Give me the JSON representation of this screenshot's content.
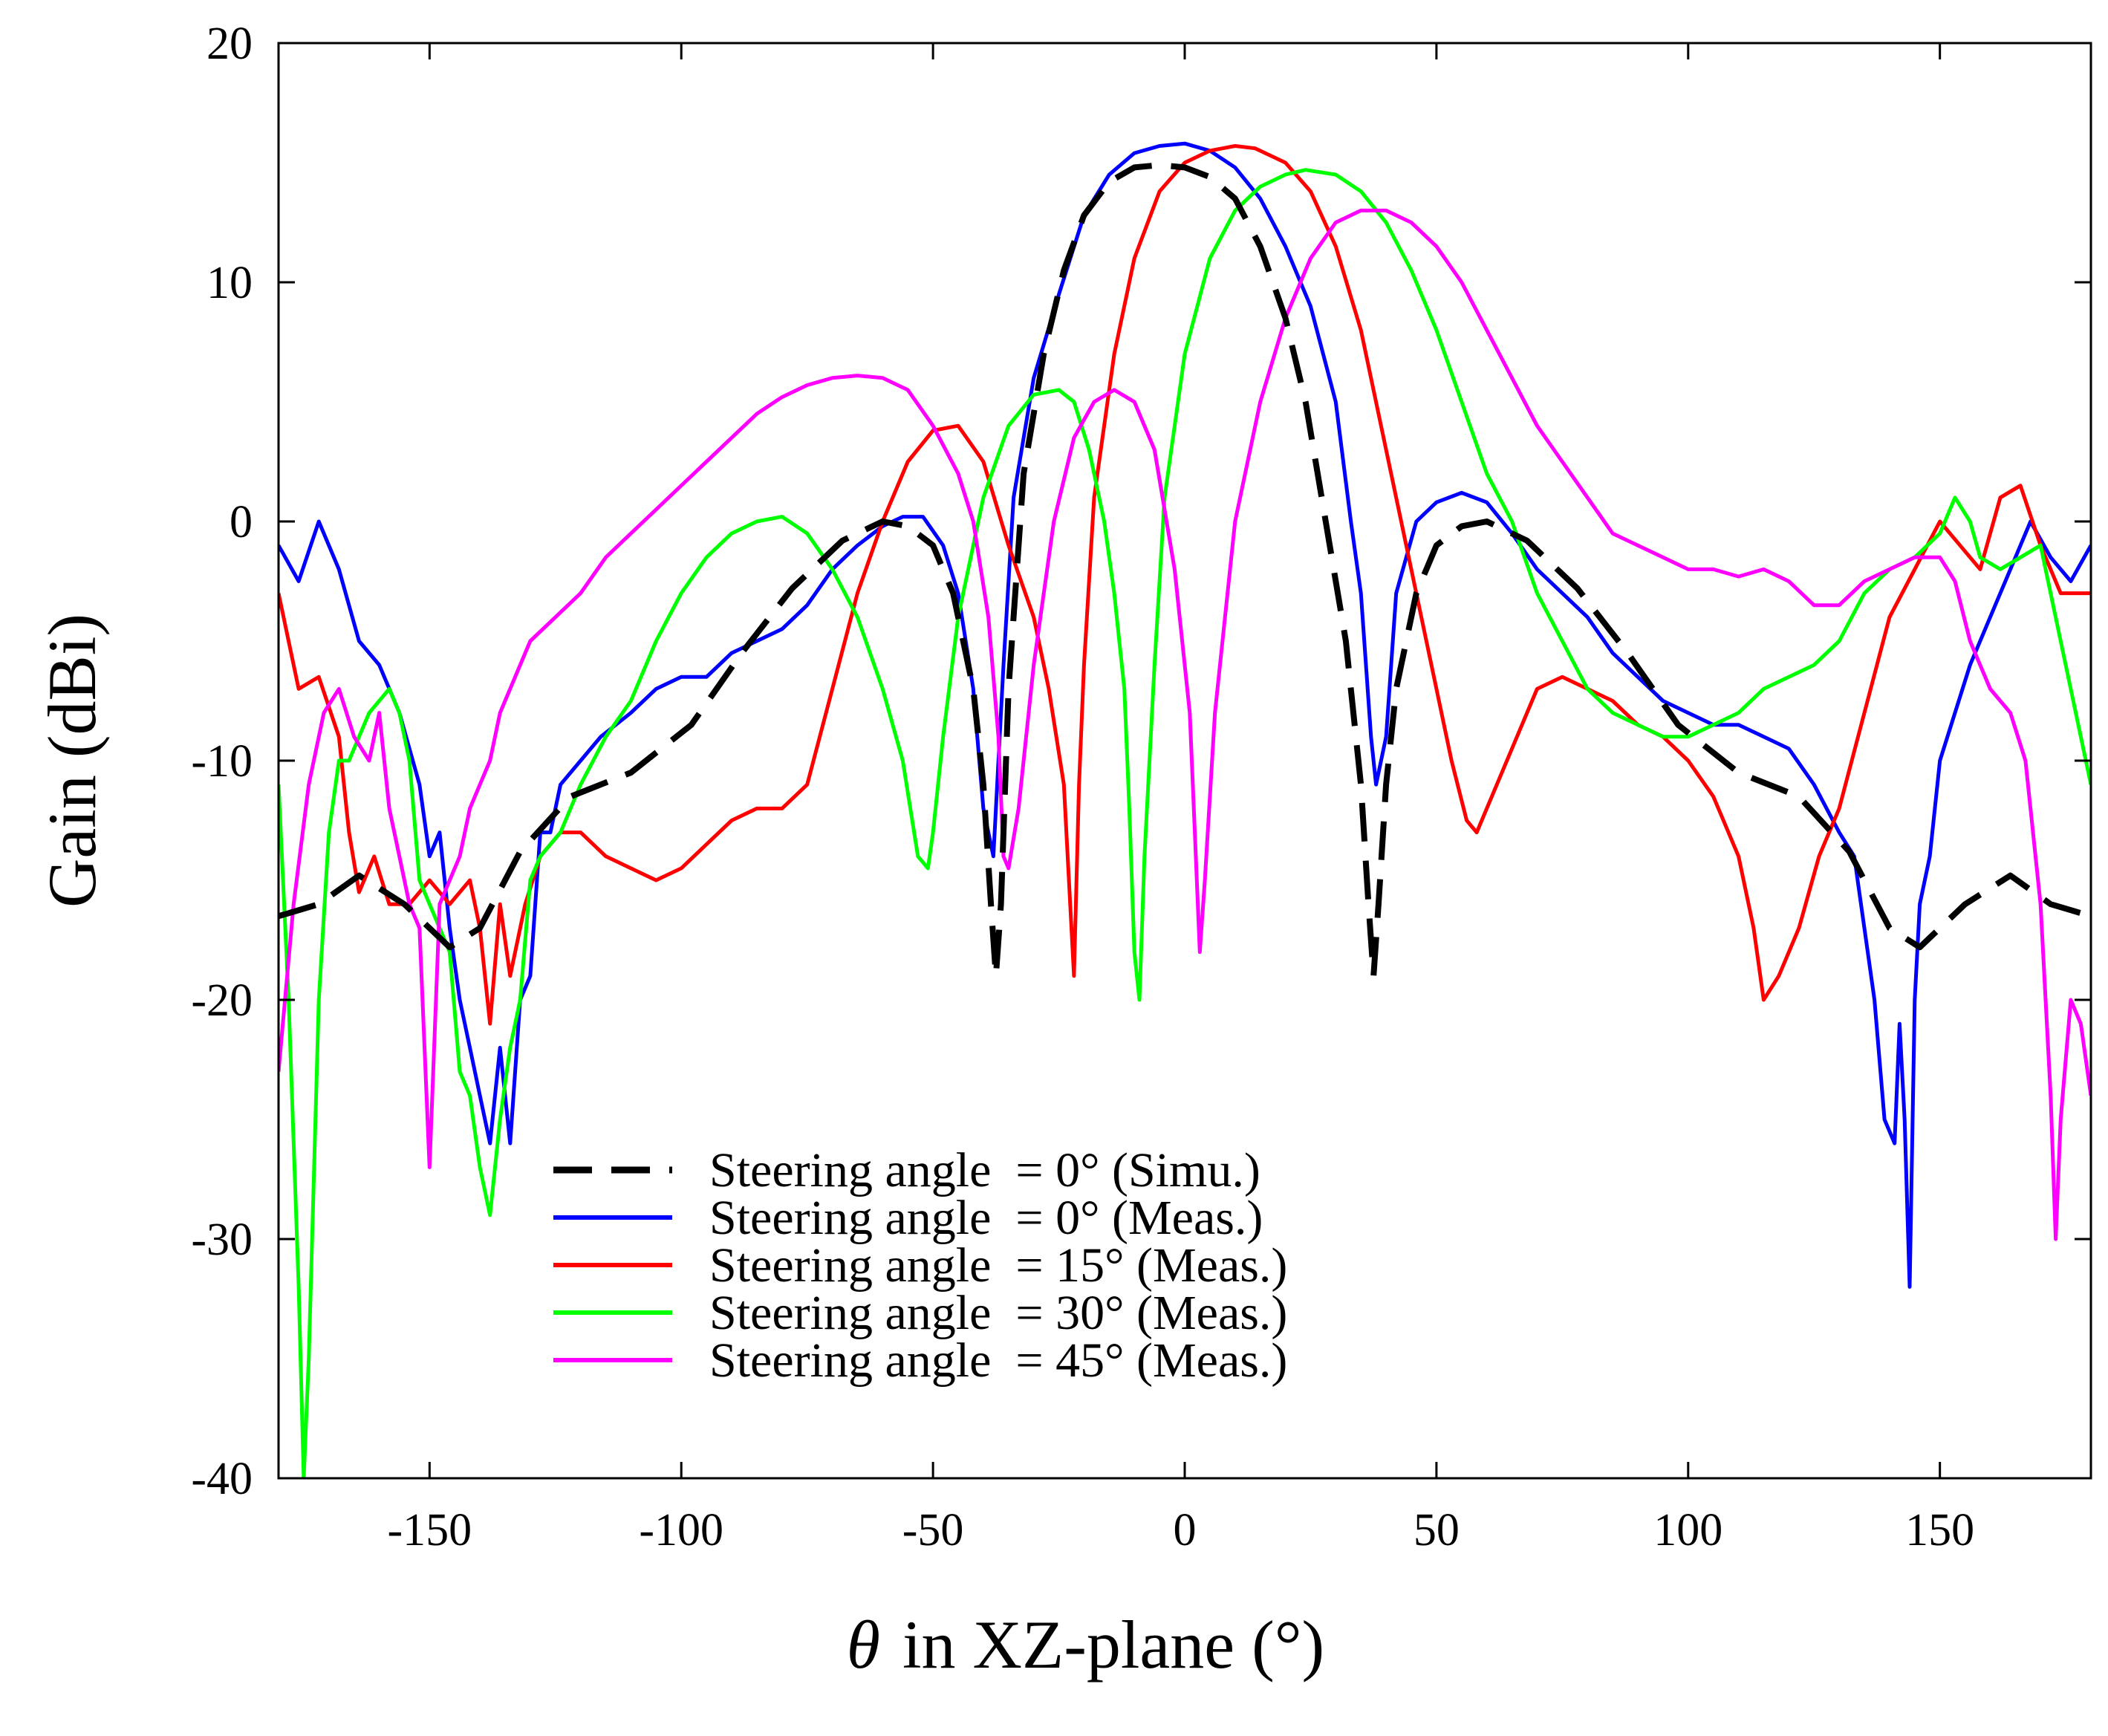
{
  "chart_data": {
    "type": "line",
    "title": "",
    "xlabel": "in XZ-plane (°)",
    "xlabel_symbol": "θ",
    "ylabel": "Gain (dBi)",
    "xlim": [
      -180,
      180
    ],
    "ylim": [
      -40,
      20
    ],
    "xticks": [
      -150,
      -100,
      -50,
      0,
      50,
      100,
      150
    ],
    "xtick_labels": [
      "-150",
      "-100",
      "-50",
      "0",
      "50",
      "100",
      "150"
    ],
    "yticks": [
      -40,
      -30,
      -20,
      -10,
      0,
      10,
      20
    ],
    "ytick_labels": [
      "-40",
      "-30",
      "-20",
      "-10",
      "0",
      "10",
      "20"
    ],
    "grid": false,
    "legend_position": "bottom-center",
    "series": [
      {
        "name": "Steering angle  = 0° (Simu.)",
        "color": "#000000",
        "dashed": true,
        "x": [
          -180,
          -172,
          -164,
          -155,
          -146,
          -140,
          -132,
          -122,
          -110,
          -98,
          -88,
          -78,
          -68,
          -60,
          -55,
          -50,
          -46,
          -42,
          -40,
          -38.5,
          -37.5,
          -36.5,
          -35,
          -32,
          -28,
          -24,
          -20,
          -15,
          -10,
          -5,
          0,
          5,
          10,
          15,
          20,
          24,
          28,
          32,
          35,
          36.5,
          37.5,
          38.5,
          40,
          42,
          46,
          50,
          55,
          60,
          68,
          78,
          88,
          98,
          110,
          122,
          132,
          140,
          146,
          155,
          164,
          172,
          180
        ],
        "values": [
          -16.5,
          -16,
          -14.8,
          -16,
          -17.8,
          -17,
          -13.8,
          -11.5,
          -10.5,
          -8.5,
          -5.5,
          -2.8,
          -0.8,
          0,
          -0.2,
          -1,
          -3,
          -7,
          -11,
          -16,
          -19,
          -16,
          -7,
          2,
          7,
          10.5,
          12.8,
          14.2,
          14.8,
          14.9,
          14.8,
          14.4,
          13.5,
          11.5,
          8.5,
          5,
          0,
          -5,
          -11,
          -16,
          -19,
          -16,
          -11,
          -7,
          -3,
          -1,
          -0.2,
          0,
          -0.8,
          -2.8,
          -5.5,
          -8.5,
          -10.5,
          -11.5,
          -13.8,
          -17,
          -17.8,
          -16,
          -14.8,
          -16,
          -16.5
        ]
      },
      {
        "name": "Steering angle  = 0° (Meas.)",
        "color": "#0000ff",
        "dashed": false,
        "x": [
          -180,
          -176,
          -172,
          -168,
          -164,
          -160,
          -156,
          -152,
          -150,
          -148,
          -146,
          -144,
          -142,
          -140,
          -138,
          -136,
          -134,
          -132,
          -130,
          -128,
          -126,
          -124,
          -120,
          -116,
          -110,
          -105,
          -100,
          -95,
          -90,
          -85,
          -80,
          -75,
          -70,
          -65,
          -60,
          -56,
          -52,
          -48,
          -45,
          -42,
          -40,
          -38,
          -36,
          -34,
          -30,
          -25,
          -20,
          -15,
          -10,
          -5,
          0,
          5,
          10,
          15,
          20,
          25,
          30,
          33,
          35,
          36,
          37,
          38,
          40,
          42,
          46,
          50,
          55,
          60,
          65,
          70,
          75,
          80,
          85,
          90,
          95,
          100,
          105,
          110,
          115,
          120,
          125,
          130,
          133,
          135,
          137,
          139,
          141,
          142,
          143,
          144,
          145,
          146,
          148,
          150,
          153,
          156,
          160,
          164,
          168,
          172,
          176,
          180
        ],
        "values": [
          -1,
          -2.5,
          0,
          -2,
          -5,
          -6,
          -8,
          -11,
          -14,
          -13,
          -17,
          -20,
          -22,
          -24,
          -26,
          -22,
          -26,
          -20,
          -19,
          -13,
          -13,
          -11,
          -10,
          -9,
          -8,
          -7,
          -6.5,
          -6.5,
          -5.5,
          -5,
          -4.5,
          -3.5,
          -2,
          -1,
          -0.2,
          0.2,
          0.2,
          -1,
          -3,
          -7,
          -12,
          -14,
          -6,
          1,
          6,
          9.5,
          12.8,
          14.5,
          15.4,
          15.7,
          15.8,
          15.5,
          14.8,
          13.5,
          11.5,
          9,
          5,
          0,
          -3,
          -6,
          -9,
          -11,
          -9,
          -3,
          0,
          0.8,
          1.2,
          0.8,
          -0.5,
          -2,
          -3,
          -4,
          -5.5,
          -6.5,
          -7.5,
          -8,
          -8.5,
          -8.5,
          -9,
          -9.5,
          -11,
          -13,
          -14,
          -17,
          -20,
          -25,
          -26,
          -21,
          -25,
          -32,
          -20,
          -16,
          -14,
          -10,
          -8,
          -6,
          -4,
          -2,
          0,
          -1.5,
          -2.5,
          -1
        ]
      },
      {
        "name": "Steering angle  = 15° (Meas.)",
        "color": "#ff0000",
        "dashed": false,
        "x": [
          -180,
          -176,
          -172,
          -168,
          -166,
          -164,
          -161,
          -158,
          -154,
          -150,
          -146,
          -142,
          -140,
          -138,
          -136,
          -134,
          -131,
          -128,
          -124,
          -120,
          -115,
          -110,
          -105,
          -100,
          -95,
          -90,
          -85,
          -80,
          -75,
          -70,
          -65,
          -60,
          -55,
          -50,
          -45,
          -40,
          -35,
          -30,
          -27,
          -24,
          -23,
          -22,
          -21,
          -20,
          -18,
          -14,
          -10,
          -5,
          0,
          5,
          10,
          14,
          20,
          25,
          30,
          35,
          40,
          45,
          50,
          53,
          56,
          58,
          62,
          66,
          70,
          75,
          80,
          85,
          90,
          95,
          100,
          105,
          110,
          113,
          115,
          118,
          122,
          126,
          130,
          135,
          140,
          145,
          150,
          154,
          158,
          162,
          166,
          170,
          174,
          178,
          180
        ],
        "values": [
          -3,
          -7,
          -6.5,
          -9,
          -13,
          -15.5,
          -14,
          -16,
          -16,
          -15,
          -16,
          -15,
          -17,
          -21,
          -16,
          -19,
          -16,
          -14,
          -13,
          -13,
          -14,
          -14.5,
          -15,
          -14.5,
          -13.5,
          -12.5,
          -12,
          -12,
          -11,
          -7,
          -3,
          0,
          2.5,
          3.8,
          4,
          2.5,
          -1,
          -4,
          -7,
          -11,
          -15,
          -19,
          -11,
          -6,
          1,
          7,
          11,
          13.8,
          15,
          15.5,
          15.7,
          15.6,
          15,
          13.8,
          11.5,
          8,
          3,
          -2,
          -7,
          -10,
          -12.5,
          -13,
          -11,
          -9,
          -7,
          -6.5,
          -7,
          -7.5,
          -8.5,
          -9,
          -10,
          -11.5,
          -14,
          -17,
          -20,
          -19,
          -17,
          -14,
          -12,
          -8,
          -4,
          -2,
          0,
          -1,
          -2,
          1,
          1.5,
          -1,
          -3,
          -3,
          -3
        ]
      },
      {
        "name": "Steering angle  = 30° (Meas.)",
        "color": "#00ff00",
        "dashed": false,
        "x": [
          -180,
          -178,
          -176,
          -175,
          -174,
          -172,
          -170,
          -168,
          -166,
          -164,
          -162,
          -160,
          -158,
          -156,
          -154,
          -152,
          -150,
          -148,
          -146,
          -144,
          -142,
          -140,
          -138,
          -136,
          -134,
          -132,
          -130,
          -128,
          -124,
          -120,
          -115,
          -110,
          -105,
          -100,
          -95,
          -90,
          -85,
          -80,
          -75,
          -70,
          -65,
          -60,
          -56,
          -53,
          -51,
          -50,
          -48,
          -45,
          -40,
          -35,
          -30,
          -25,
          -22,
          -19,
          -16,
          -14,
          -12,
          -11,
          -10,
          -9,
          -8,
          -6,
          -4,
          0,
          5,
          10,
          15,
          20,
          24,
          30,
          35,
          40,
          45,
          50,
          55,
          60,
          65,
          70,
          75,
          80,
          85,
          90,
          95,
          100,
          105,
          110,
          115,
          120,
          125,
          130,
          135,
          140,
          145,
          150,
          153,
          156,
          158,
          162,
          166,
          170,
          174,
          178,
          180
        ],
        "values": [
          -11,
          -20,
          -32,
          -40,
          -35,
          -20,
          -13,
          -10,
          -10,
          -9,
          -8,
          -7.5,
          -7,
          -8,
          -10,
          -15,
          -16,
          -17,
          -18,
          -23,
          -24,
          -27,
          -29,
          -25,
          -22,
          -20,
          -15,
          -14,
          -13,
          -11,
          -9,
          -7.5,
          -5,
          -3,
          -1.5,
          -0.5,
          0,
          0.2,
          -0.5,
          -2,
          -4,
          -7,
          -10,
          -14,
          -14.5,
          -13,
          -9,
          -4,
          1,
          4,
          5.3,
          5.5,
          5,
          3,
          0,
          -3,
          -7,
          -12,
          -18,
          -20,
          -14,
          -6,
          1,
          7,
          11,
          13,
          14,
          14.5,
          14.7,
          14.5,
          13.8,
          12.5,
          10.5,
          8,
          5,
          2,
          0,
          -3,
          -5,
          -7,
          -8,
          -8.5,
          -9,
          -9,
          -8.5,
          -8,
          -7,
          -6.5,
          -6,
          -5,
          -3,
          -2,
          -1.5,
          -0.5,
          1,
          0,
          -1.5,
          -2,
          -1.5,
          -1,
          -5,
          -9,
          -11
        ]
      },
      {
        "name": "Steering angle  = 45° (Meas.)",
        "color": "#ff00ff",
        "dashed": false,
        "x": [
          -180,
          -177,
          -174,
          -171,
          -168,
          -165,
          -162,
          -160,
          -158,
          -156,
          -154,
          -152,
          -150,
          -148,
          -146,
          -144,
          -142,
          -140,
          -138,
          -136,
          -134,
          -132,
          -130,
          -125,
          -120,
          -115,
          -110,
          -105,
          -100,
          -95,
          -90,
          -85,
          -80,
          -75,
          -70,
          -65,
          -60,
          -55,
          -50,
          -45,
          -42,
          -39,
          -37,
          -36,
          -35,
          -33,
          -30,
          -26,
          -22,
          -18,
          -14,
          -10,
          -6,
          -2,
          1,
          2,
          3,
          4,
          6,
          10,
          15,
          20,
          25,
          30,
          35,
          40,
          45,
          50,
          55,
          60,
          65,
          70,
          75,
          80,
          85,
          90,
          95,
          100,
          105,
          110,
          115,
          120,
          125,
          130,
          135,
          140,
          145,
          150,
          153,
          156,
          160,
          164,
          167,
          170,
          172,
          173,
          174,
          176,
          178,
          180
        ],
        "values": [
          -23,
          -16,
          -11,
          -8,
          -7,
          -9,
          -10,
          -8,
          -12,
          -14,
          -16,
          -17,
          -27,
          -16,
          -15,
          -14,
          -12,
          -11,
          -10,
          -8,
          -7,
          -6,
          -5,
          -4,
          -3,
          -1.5,
          -0.5,
          0.5,
          1.5,
          2.5,
          3.5,
          4.5,
          5.2,
          5.7,
          6,
          6.1,
          6,
          5.5,
          4,
          2,
          0,
          -4,
          -9,
          -14,
          -14.5,
          -12,
          -6,
          0,
          3.5,
          5,
          5.5,
          5,
          3,
          -2,
          -8,
          -13,
          -18,
          -15,
          -8,
          0,
          5,
          8.5,
          11,
          12.5,
          13,
          13,
          12.5,
          11.5,
          10,
          8,
          6,
          4,
          2.5,
          1,
          -0.5,
          -1,
          -1.5,
          -2,
          -2,
          -2.3,
          -2,
          -2.5,
          -3.5,
          -3.5,
          -2.5,
          -2,
          -1.5,
          -1.5,
          -2.5,
          -5,
          -7,
          -8,
          -10,
          -16,
          -24,
          -30,
          -25,
          -20,
          -21,
          -24
        ]
      }
    ]
  }
}
